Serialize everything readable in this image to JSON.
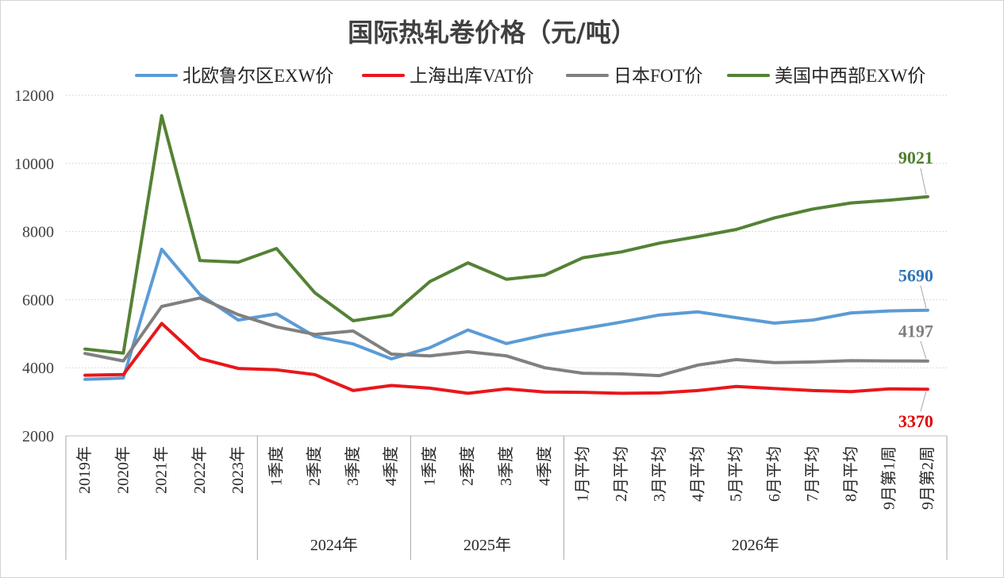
{
  "chart_data": {
    "type": "line",
    "title": "国际热轧卷价格（元/吨）",
    "xlabel": "",
    "ylabel": "",
    "categories": [
      "2019年",
      "2020年",
      "2021年",
      "2022年",
      "2023年",
      "1季度",
      "2季度",
      "3季度",
      "4季度",
      "1季度",
      "2季度",
      "3季度",
      "4季度",
      "1月平均",
      "2月平均",
      "3月平均",
      "4月平均",
      "5月平均",
      "6月平均",
      "7月平均",
      "8月平均",
      "9月第1周",
      "9月第2周"
    ],
    "category_groups": [
      {
        "label": "",
        "count": 5
      },
      {
        "label": "2024年",
        "count": 4
      },
      {
        "label": "2025年",
        "count": 4
      },
      {
        "label": "2026年",
        "count": 10
      }
    ],
    "ylim": [
      2000,
      12000
    ],
    "yticks": [
      2000,
      4000,
      6000,
      8000,
      10000,
      12000
    ],
    "grid": true,
    "legend_position": "top",
    "data_labels": "last point",
    "series": [
      {
        "name": "北欧鲁尔区EXW价",
        "color": "#5B9BD5",
        "label_color": "#2E75B6",
        "values": [
          3660,
          3700,
          7480,
          6150,
          5400,
          5580,
          4920,
          4700,
          4260,
          4590,
          5110,
          4710,
          4960,
          5150,
          5340,
          5550,
          5640,
          5470,
          5310,
          5400,
          5610,
          5670,
          5690
        ]
      },
      {
        "name": "上海出库VAT价",
        "color": "#E8171B",
        "label_color": "#E00000",
        "values": [
          3780,
          3800,
          5300,
          4270,
          3980,
          3940,
          3800,
          3330,
          3480,
          3400,
          3250,
          3380,
          3290,
          3280,
          3250,
          3260,
          3330,
          3450,
          3390,
          3330,
          3300,
          3380,
          3370
        ]
      },
      {
        "name": "日本FOT价",
        "color": "#808080",
        "label_color": "#7F7F7F",
        "values": [
          4420,
          4200,
          5800,
          6050,
          5560,
          5200,
          4980,
          5080,
          4400,
          4350,
          4470,
          4350,
          4000,
          3840,
          3820,
          3770,
          4080,
          4240,
          4150,
          4170,
          4210,
          4200,
          4197
        ]
      },
      {
        "name": "美国中西部EXW价",
        "color": "#548235",
        "label_color": "#4E7F2E",
        "values": [
          4550,
          4430,
          11400,
          7150,
          7100,
          7500,
          6200,
          5380,
          5550,
          6530,
          7080,
          6600,
          6720,
          7230,
          7400,
          7660,
          7850,
          8060,
          8400,
          8660,
          8840,
          8920,
          9021
        ]
      }
    ]
  }
}
